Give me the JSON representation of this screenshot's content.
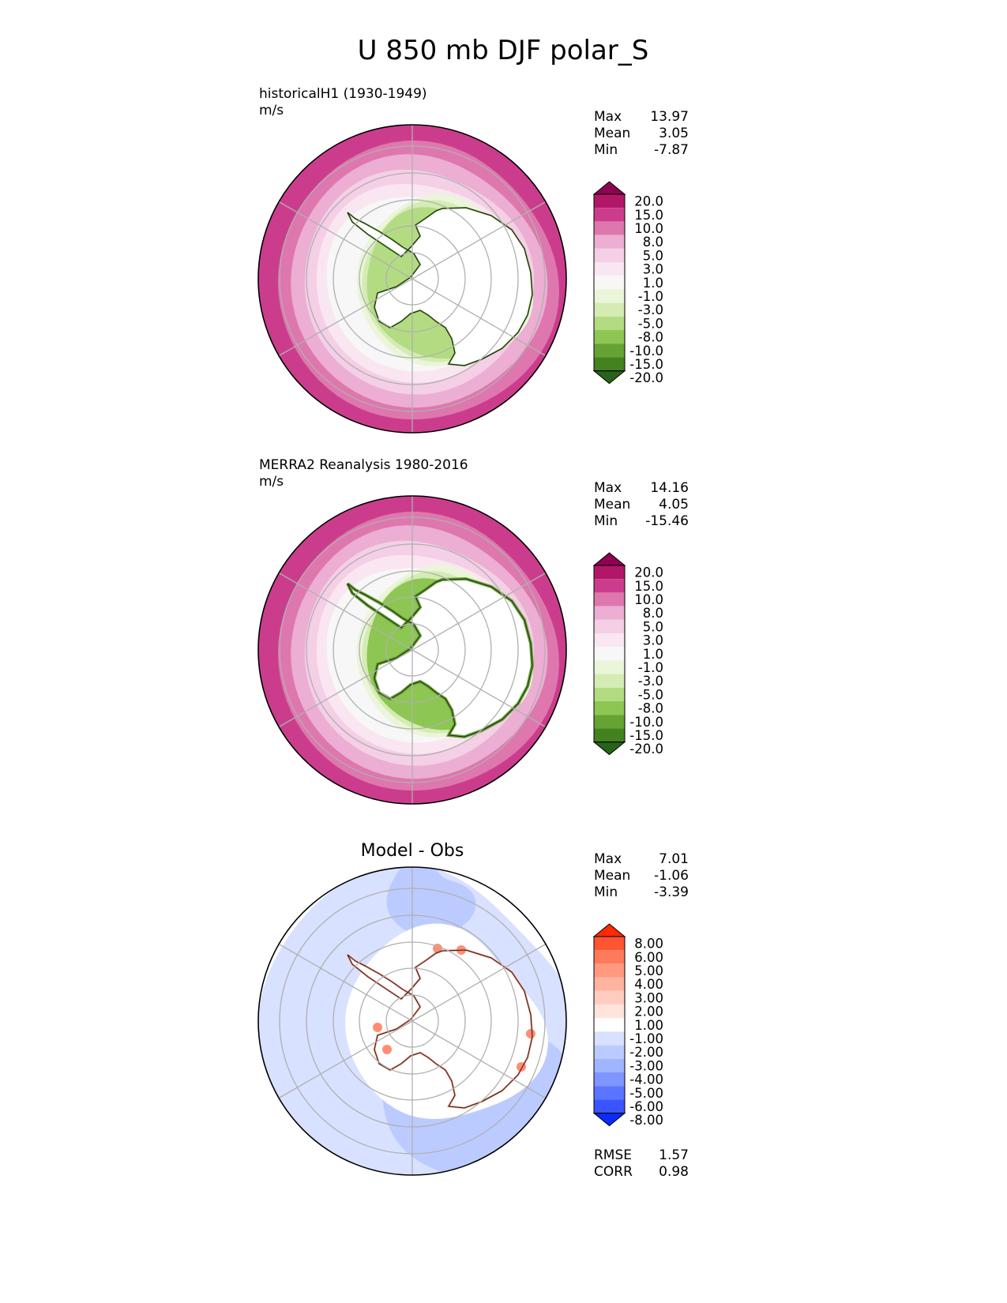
{
  "chart_data": {
    "title": "U 850 mb DJF polar_S",
    "panels": [
      {
        "type": "heatmap",
        "projection": "south-polar-stereographic",
        "subtitle": "historicalH1 (1930-1949)",
        "units": "m/s",
        "stats": {
          "labels": [
            "Max",
            "Mean",
            "Min"
          ],
          "values": [
            "13.97",
            "3.05",
            "-7.87"
          ]
        },
        "colorbar": {
          "levels": [
            "20.0",
            "15.0",
            "10.0",
            "8.0",
            "5.0",
            "3.0",
            "1.0",
            "-1.0",
            "-3.0",
            "-5.0",
            "-8.0",
            "-10.0",
            "-15.0",
            "-20.0"
          ],
          "colors": [
            "#8e0152",
            "#b21767",
            "#cb3d8c",
            "#de77ae",
            "#ecaed2",
            "#f4cfe6",
            "#fae6f1",
            "#f7f7f7",
            "#eaf5d9",
            "#d4ecb3",
            "#b3dc82",
            "#8dc653",
            "#66a332",
            "#43821f",
            "#276419"
          ]
        }
      },
      {
        "type": "heatmap",
        "projection": "south-polar-stereographic",
        "subtitle": "MERRA2 Reanalysis 1980-2016",
        "units": "m/s",
        "stats": {
          "labels": [
            "Max",
            "Mean",
            "Min"
          ],
          "values": [
            "14.16",
            "4.05",
            "-15.46"
          ]
        },
        "colorbar": {
          "levels": [
            "20.0",
            "15.0",
            "10.0",
            "8.0",
            "5.0",
            "3.0",
            "1.0",
            "-1.0",
            "-3.0",
            "-5.0",
            "-8.0",
            "-10.0",
            "-15.0",
            "-20.0"
          ],
          "colors": [
            "#8e0152",
            "#b21767",
            "#cb3d8c",
            "#de77ae",
            "#ecaed2",
            "#f4cfe6",
            "#fae6f1",
            "#f7f7f7",
            "#eaf5d9",
            "#d4ecb3",
            "#b3dc82",
            "#8dc653",
            "#66a332",
            "#43821f",
            "#276419"
          ]
        }
      },
      {
        "type": "heatmap",
        "projection": "south-polar-stereographic",
        "subtitle": "Model - Obs",
        "units": "",
        "stats": {
          "labels": [
            "Max",
            "Mean",
            "Min"
          ],
          "values": [
            "7.01",
            "-1.06",
            "-3.39"
          ]
        },
        "colorbar": {
          "levels": [
            "8.00",
            "6.00",
            "5.00",
            "4.00",
            "3.00",
            "2.00",
            "1.00",
            "-1.00",
            "-2.00",
            "-3.00",
            "-4.00",
            "-5.00",
            "-6.00",
            "-8.00"
          ],
          "colors": [
            "#ff2a00",
            "#ff5533",
            "#ff7a5c",
            "#ff9980",
            "#ffb3a0",
            "#ffcdc0",
            "#ffe4dc",
            "#ffffff",
            "#d8e1ff",
            "#bccbff",
            "#a0b4ff",
            "#7f96ff",
            "#5c75ff",
            "#3a55ff",
            "#0a2aff"
          ]
        },
        "metrics": {
          "labels": [
            "RMSE",
            "CORR"
          ],
          "values": [
            "1.57",
            "0.98"
          ]
        }
      }
    ]
  }
}
